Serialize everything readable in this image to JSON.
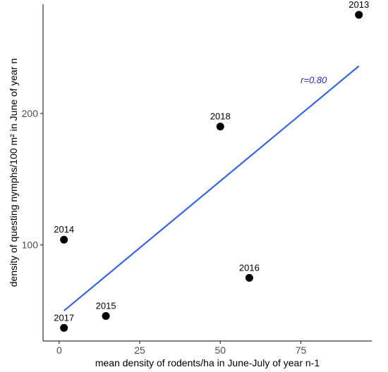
{
  "chart_data": {
    "type": "scatter",
    "title": "",
    "xlabel": "mean density of rodents/ha in June-July of year n-1",
    "ylabel": "density of questing nymphs/100 m² in June of year n",
    "xlim": [
      -5,
      97
    ],
    "ylim": [
      27,
      283
    ],
    "xticks": [
      0,
      25,
      50,
      75
    ],
    "yticks": [
      100,
      200
    ],
    "grid": false,
    "points": [
      {
        "label": "2013",
        "x": 93,
        "y": 275
      },
      {
        "label": "2018",
        "x": 50,
        "y": 190
      },
      {
        "label": "2014",
        "x": 1.5,
        "y": 104
      },
      {
        "label": "2016",
        "x": 59,
        "y": 75
      },
      {
        "label": "2015",
        "x": 14.5,
        "y": 46
      },
      {
        "label": "2017",
        "x": 1.5,
        "y": 37
      }
    ],
    "trend_line": {
      "x": [
        1.5,
        93
      ],
      "y": [
        50,
        236
      ]
    },
    "annotation": {
      "text": "r=0.80",
      "x": 79,
      "y": 223,
      "color": "#2b2bcf"
    },
    "colors": {
      "points": "#000000",
      "trend": "#3366e6",
      "axis": "#333333"
    }
  }
}
